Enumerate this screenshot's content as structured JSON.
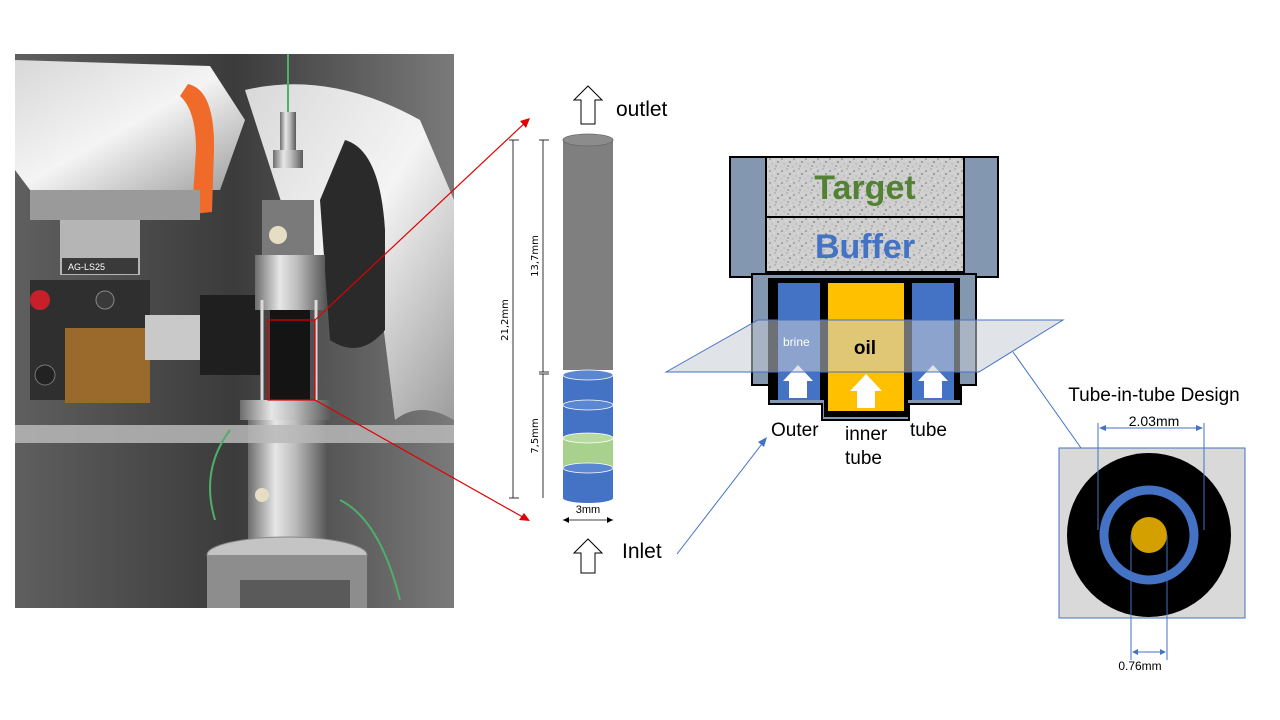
{
  "labels": {
    "outlet": "outlet",
    "inlet": "Inlet",
    "dim_total": "21,2mm",
    "dim_upper": "13,7mm",
    "dim_lower": "7,5mm",
    "dim_width": "3mm",
    "target": "Target",
    "buffer": "Buffer",
    "brine": "brine",
    "oil": "oil",
    "outer": "Outer",
    "inner_tube": "inner\ntube",
    "tube": "tube",
    "design_title": "Tube-in-tube Design",
    "outer_diameter": "2.03mm",
    "inner_diameter": "0.76mm",
    "photo_device_label": "AG-LS25"
  },
  "colors": {
    "column_gray": "#7f7f7f",
    "band_blue": "#4472c4",
    "band_green": "#a9d18e",
    "target_green": "#548235",
    "buffer_blue": "#4472c4",
    "oil_yellow": "#ffc000",
    "frame_gray": "#8497b0",
    "plane": "#d0d5dd",
    "callout_red": "#e00000"
  }
}
